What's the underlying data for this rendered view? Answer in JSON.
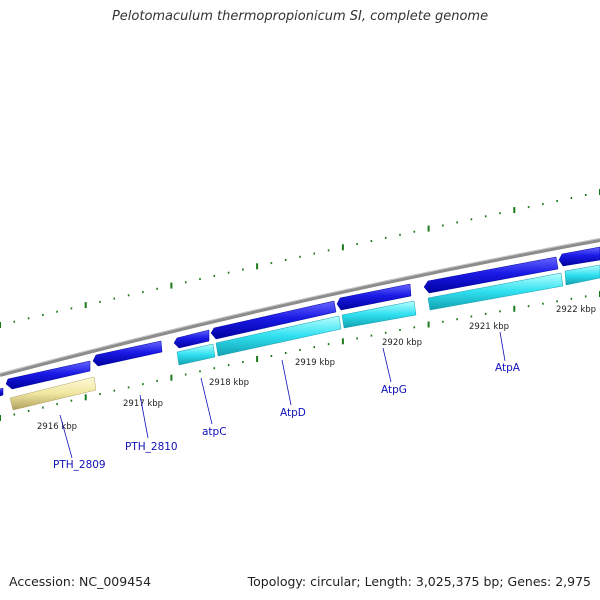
{
  "title": "Pelotomaculum thermopropionicum SI, complete genome",
  "footer": {
    "accession": "Accession: NC_009454",
    "stats": "Topology: circular; Length: 3,025,375 bp; Genes: 2,975"
  },
  "colors": {
    "backbone": "#8c8c8c",
    "cds_forward": "#1a1ae6",
    "cds_forward_dark": "#0000a0",
    "rna_forward": "#2fe0f0",
    "rna_forward_dark": "#12a0b0",
    "pseudo": "#f0e6a0",
    "pseudo_dark": "#b0a060",
    "tick": "#1a7a1a",
    "gene_label": "#1010b8"
  },
  "kbp_labels": [
    "2916 kbp",
    "2917 kbp",
    "2918 kbp",
    "2919 kbp",
    "2920 kbp",
    "2921 kbp",
    "2922 kbp"
  ],
  "gene_labels": [
    "PTH_2809",
    "PTH_2810",
    "atpC",
    "AtpD",
    "AtpG",
    "AtpA"
  ]
}
